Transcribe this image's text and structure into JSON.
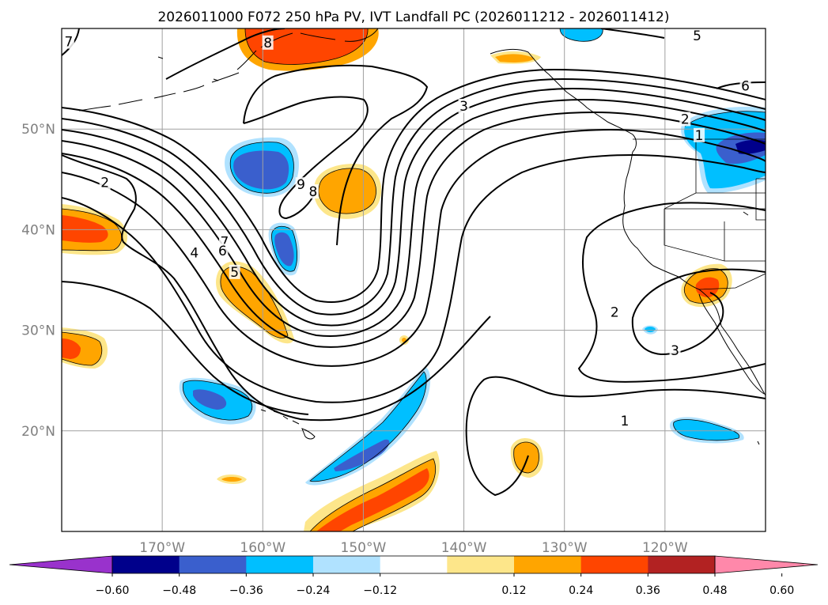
{
  "title": "2026011000 F072 250 hPa PV, IVT Landfall PC (2026011212 - 2026011412)",
  "map": {
    "lon_range": [
      -180,
      -110
    ],
    "lat_range": [
      10,
      60
    ],
    "lon_ticks": [
      -170,
      -160,
      -150,
      -140,
      -130,
      -120
    ],
    "lon_tick_labels": [
      "170°W",
      "160°W",
      "150°W",
      "140°W",
      "130°W",
      "120°W"
    ],
    "lat_ticks": [
      20,
      30,
      40,
      50
    ],
    "lat_tick_labels": [
      "20°N",
      "30°N",
      "40°N",
      "50°N"
    ],
    "grid": true
  },
  "contour_labels": [
    {
      "text": "7",
      "lon": -179.3,
      "lat": 58.7
    },
    {
      "text": "8",
      "lon": -159.5,
      "lat": 58.6
    },
    {
      "text": "5",
      "lon": -116.8,
      "lat": 59.3
    },
    {
      "text": "6",
      "lon": -112.0,
      "lat": 54.3
    },
    {
      "text": "3",
      "lon": -140.0,
      "lat": 52.3
    },
    {
      "text": "2",
      "lon": -118.0,
      "lat": 51.0
    },
    {
      "text": "1",
      "lon": -116.6,
      "lat": 49.4
    },
    {
      "text": "2",
      "lon": -175.7,
      "lat": 44.7
    },
    {
      "text": "9",
      "lon": -156.2,
      "lat": 44.5
    },
    {
      "text": "8",
      "lon": -155.0,
      "lat": 43.8
    },
    {
      "text": "7",
      "lon": -163.8,
      "lat": 38.8
    },
    {
      "text": "6",
      "lon": -164.0,
      "lat": 37.9
    },
    {
      "text": "4",
      "lon": -166.8,
      "lat": 37.7
    },
    {
      "text": "5",
      "lon": -162.8,
      "lat": 35.8
    },
    {
      "text": "2",
      "lon": -125.0,
      "lat": 31.8
    },
    {
      "text": "3",
      "lon": -119.0,
      "lat": 28.0
    },
    {
      "text": "1",
      "lon": -124.0,
      "lat": 21.0
    }
  ],
  "colorbar": {
    "colors": [
      "#9932cc",
      "#00008b",
      "#3a5fcd",
      "#00bfff",
      "#b0e2ff",
      "#ffffff",
      "#fde68a",
      "#ffa500",
      "#ff4500",
      "#b22222",
      "#ff88aa"
    ],
    "tick_values": [
      -0.6,
      -0.48,
      -0.36,
      -0.24,
      -0.12,
      0.12,
      0.24,
      0.36,
      0.48,
      0.6
    ],
    "tick_labels": [
      "−0.60",
      "−0.48",
      "−0.36",
      "−0.24",
      "−0.12",
      "0.12",
      "0.24",
      "0.36",
      "0.48",
      "0.60"
    ]
  }
}
